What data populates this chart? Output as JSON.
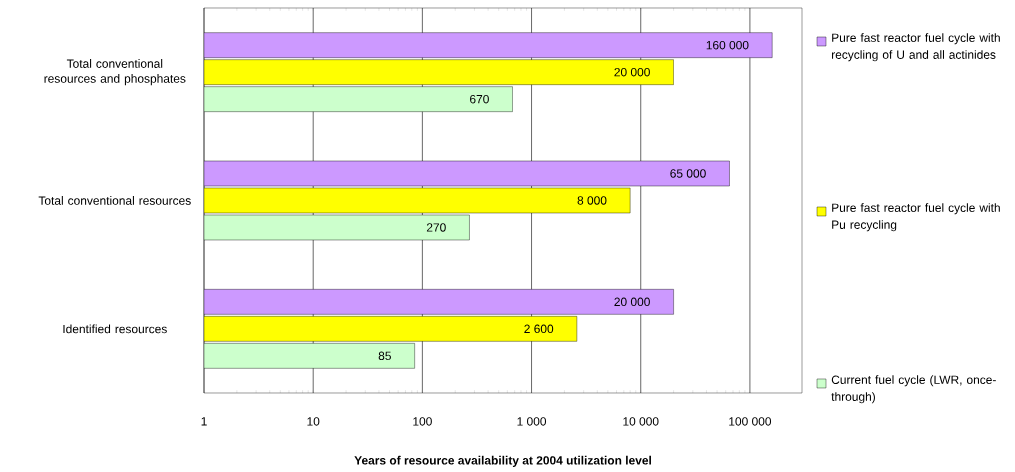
{
  "chart_data": {
    "type": "bar",
    "orientation": "horizontal",
    "log": "x",
    "xlabel": "Years of resource availability  at 2004 utilization level",
    "categories": [
      "Total conventional resources and phosphates",
      "Total conventional resources",
      "Identified resources"
    ],
    "series": [
      {
        "name": "Pure fast reactor fuel cycle with recycling of U and all actinides",
        "color": "#cc99ff",
        "values": [
          160000,
          65000,
          20000
        ],
        "value_labels": [
          "160 000",
          "65 000",
          "20 000"
        ]
      },
      {
        "name": "Pure fast reactor fuel cycle with Pu recycling",
        "color": "#ffff00",
        "values": [
          20000,
          8000,
          2600
        ],
        "value_labels": [
          "20 000",
          "8 000",
          "2 600"
        ]
      },
      {
        "name": "Current fuel cycle (LWR, once-through)",
        "color": "#ccffcc",
        "values": [
          670,
          270,
          85
        ],
        "value_labels": [
          "670",
          "270",
          "85"
        ]
      }
    ],
    "xlim": [
      1,
      300000
    ],
    "xticks": [
      1,
      10,
      100,
      {
        "value": 1000,
        "label": "1 000"
      },
      {
        "value": 10000,
        "label": "10 000"
      },
      {
        "value": 100000,
        "label": "100 000"
      }
    ],
    "grid": "x",
    "legend": "right"
  }
}
